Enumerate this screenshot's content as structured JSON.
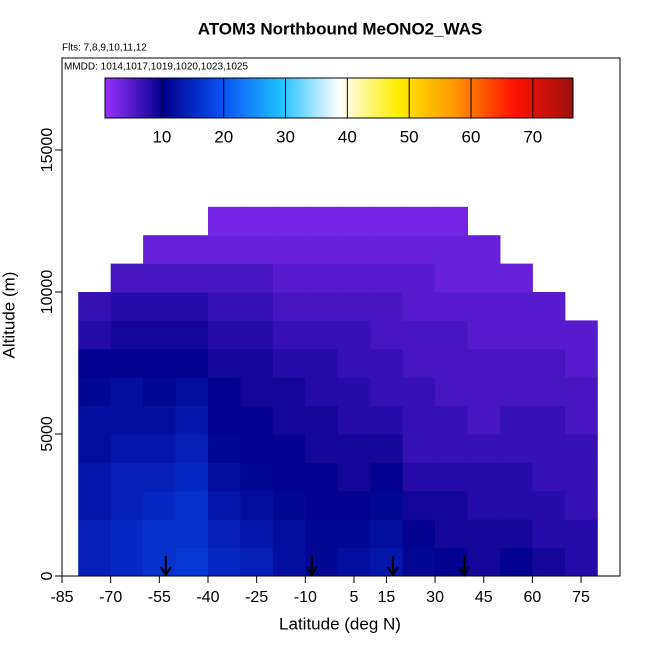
{
  "chart_data": {
    "type": "heatmap",
    "title": "ATOM3 Northbound MeONO2_WAS",
    "subtitle_flights": "Flts: 7,8,9,10,11,12",
    "subtitle_dates": "MMDD: 1014,1017,1019,1020,1023,1025",
    "x_label": "Latitude (deg N)",
    "y_label": "Altitude (m)",
    "xlim": [
      -85,
      87
    ],
    "ylim": [
      0,
      18240
    ],
    "xticks": [
      -85,
      -70,
      -55,
      -40,
      -25,
      -10,
      5,
      15,
      30,
      45,
      60,
      75
    ],
    "yticks": [
      0,
      5000,
      10000,
      15000
    ],
    "clim": [
      0.8,
      76.5
    ],
    "cticks": [
      10,
      20,
      30,
      40,
      50,
      60,
      70
    ],
    "colormap": [
      "#9b30ff",
      "#00008b",
      "#0a50f5",
      "#1ec0ff",
      "#ffffff",
      "#ffee00",
      "#ff9400",
      "#ff1000",
      "#9b1010"
    ],
    "x_edges": [
      -80,
      -70,
      -60,
      -50,
      -40,
      -30,
      -20,
      -10,
      0,
      10,
      20,
      30,
      40,
      50,
      60,
      70,
      80
    ],
    "y_edges": [
      0,
      1000,
      2000,
      3000,
      4000,
      5000,
      6000,
      7000,
      8000,
      9000,
      10000,
      11000,
      12000,
      13000
    ],
    "z": [
      [
        14,
        15,
        16,
        17,
        15,
        14,
        12,
        11,
        12,
        13,
        11,
        10,
        9,
        10,
        9,
        8
      ],
      [
        14,
        15,
        16,
        16,
        14,
        13,
        12,
        11,
        11,
        12,
        10,
        9,
        9,
        9,
        8,
        8
      ],
      [
        13,
        14,
        15,
        16,
        13,
        12,
        11,
        10,
        10,
        11,
        9,
        9,
        8,
        8,
        8,
        7
      ],
      [
        13,
        14,
        14,
        15,
        12,
        11,
        10,
        10,
        9,
        10,
        8,
        8,
        8,
        8,
        7,
        7
      ],
      [
        12,
        13,
        13,
        14,
        11,
        10,
        10,
        9,
        9,
        9,
        7,
        7,
        7,
        7,
        7,
        7
      ],
      [
        12,
        12,
        12,
        13,
        10,
        10,
        9,
        9,
        8,
        8,
        7,
        7,
        6,
        7,
        7,
        6
      ],
      [
        11,
        12,
        11,
        12,
        10,
        9,
        9,
        8,
        8,
        7,
        7,
        6,
        6,
        6,
        6,
        6
      ],
      [
        10,
        10,
        10,
        10,
        9,
        9,
        8,
        8,
        7,
        7,
        6,
        6,
        6,
        6,
        6,
        5
      ],
      [
        8,
        9,
        9,
        9,
        8,
        8,
        7,
        7,
        7,
        6,
        6,
        6,
        5,
        5,
        5,
        5
      ],
      [
        7,
        8,
        8,
        8,
        7,
        7,
        6,
        6,
        6,
        6,
        5,
        5,
        5,
        5,
        5,
        null
      ],
      [
        null,
        6,
        6,
        6,
        6,
        6,
        5,
        5,
        5,
        5,
        5,
        4,
        4,
        4,
        null,
        null
      ],
      [
        null,
        null,
        4,
        4,
        4,
        4,
        4,
        4,
        4,
        4,
        4,
        4,
        4,
        null,
        null,
        null
      ],
      [
        null,
        null,
        null,
        null,
        3,
        3,
        3,
        3,
        3,
        3,
        3,
        3,
        null,
        null,
        null,
        null
      ]
    ],
    "arrows_x": [
      -53,
      -8,
      17,
      39
    ]
  }
}
